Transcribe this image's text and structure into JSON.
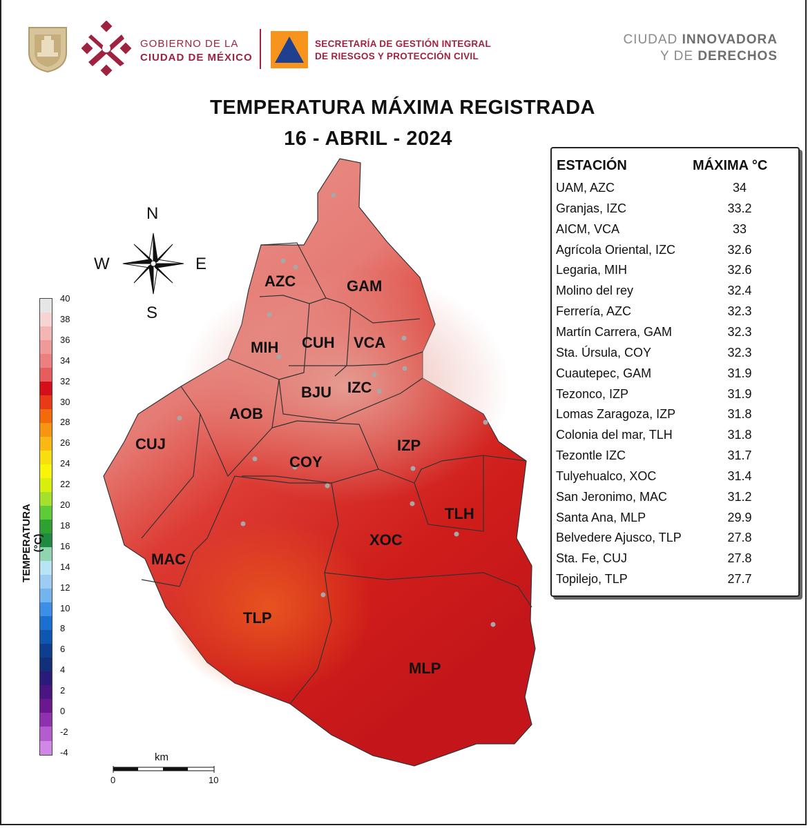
{
  "header": {
    "gov_line1": "GOBIERNO DE LA",
    "gov_line2": "CIUDAD DE MÉXICO",
    "secretaria_line1": "SECRETARÍA DE GESTIÓN INTEGRAL",
    "secretaria_line2": "DE RIESGOS Y PROTECCIÓN CIVIL",
    "slogan_line1_a": "CIUDAD ",
    "slogan_line1_b": "INNOVADORA",
    "slogan_line2_a": "Y DE ",
    "slogan_line2_b": "DERECHOS",
    "brand_color": "#9f2241",
    "pc_logo_color": "#f7941d"
  },
  "title": {
    "line1": "TEMPERATURA MÁXIMA REGISTRADA",
    "line2": "16 - ABRIL - 2024"
  },
  "compass": {
    "n": "N",
    "s": "S",
    "e": "E",
    "w": "W"
  },
  "legend": {
    "title": "TEMPERATURA (°C)",
    "ticks": [
      "40",
      "38",
      "36",
      "34",
      "32",
      "30",
      "28",
      "26",
      "24",
      "22",
      "20",
      "18",
      "16",
      "14",
      "12",
      "10",
      "8",
      "6",
      "4",
      "2",
      "0",
      "-2",
      "-4"
    ],
    "colors": [
      "#e6e6e6",
      "#f6d4d4",
      "#f2b6b6",
      "#ee9a9a",
      "#ec8080",
      "#e65d5d",
      "#d40f1a",
      "#e83a16",
      "#f26a0a",
      "#f79412",
      "#fbb814",
      "#f8dd0f",
      "#f8f40a",
      "#d7ef0c",
      "#a5e02c",
      "#5dcc36",
      "#2fa032",
      "#1f8a40",
      "#8fd6b0",
      "#b8e4f6",
      "#9ccbf4",
      "#73b4ef",
      "#3d8ee6",
      "#1a6fd0",
      "#0f56b0",
      "#0e3f8e",
      "#12307a",
      "#2a1b7a",
      "#4a1580",
      "#6b1890",
      "#8e30b0",
      "#b45bd0",
      "#cf88e6"
    ]
  },
  "table": {
    "col_station": "ESTACIÓN",
    "col_max": "MÁXIMA °C",
    "rows": [
      {
        "station": "UAM, AZC",
        "max": "34"
      },
      {
        "station": "Granjas, IZC",
        "max": "33.2"
      },
      {
        "station": "AICM, VCA",
        "max": "33"
      },
      {
        "station": "Agrícola Oriental, IZC",
        "max": "32.6"
      },
      {
        "station": "Legaria, MIH",
        "max": "32.6"
      },
      {
        "station": "Molino del rey",
        "max": "32.4"
      },
      {
        "station": "Ferrería, AZC",
        "max": "32.3"
      },
      {
        "station": "Martín Carrera, GAM",
        "max": "32.3"
      },
      {
        "station": "Sta. Úrsula, COY",
        "max": "32.3"
      },
      {
        "station": "Cuautepec, GAM",
        "max": "31.9"
      },
      {
        "station": "Tezonco, IZP",
        "max": "31.9"
      },
      {
        "station": "Lomas Zaragoza, IZP",
        "max": "31.8"
      },
      {
        "station": "Colonia del mar, TLH",
        "max": "31.8"
      },
      {
        "station": "Tezontle IZC",
        "max": "31.7"
      },
      {
        "station": "Tulyehualco, XOC",
        "max": "31.4"
      },
      {
        "station": "San Jeronimo, MAC",
        "max": "31.2"
      },
      {
        "station": "Santa Ana, MLP",
        "max": "29.9"
      },
      {
        "station": "Belvedere Ajusco, TLP",
        "max": "27.8"
      },
      {
        "station": "Sta. Fe, CUJ",
        "max": "27.8"
      },
      {
        "station": "Topilejo, TLP",
        "max": "27.7"
      }
    ]
  },
  "municipalities": {
    "azc": "AZC",
    "gam": "GAM",
    "mih": "MIH",
    "cuh": "CUH",
    "vca": "VCA",
    "bju": "BJU",
    "izc": "IZC",
    "aob": "AOB",
    "cuj": "CUJ",
    "izp": "IZP",
    "coy": "COY",
    "tlh": "TLH",
    "xoc": "XOC",
    "mac": "MAC",
    "tlp": "TLP",
    "mlp": "MLP"
  },
  "scale": {
    "unit": "km",
    "start": "0",
    "end": "10"
  }
}
